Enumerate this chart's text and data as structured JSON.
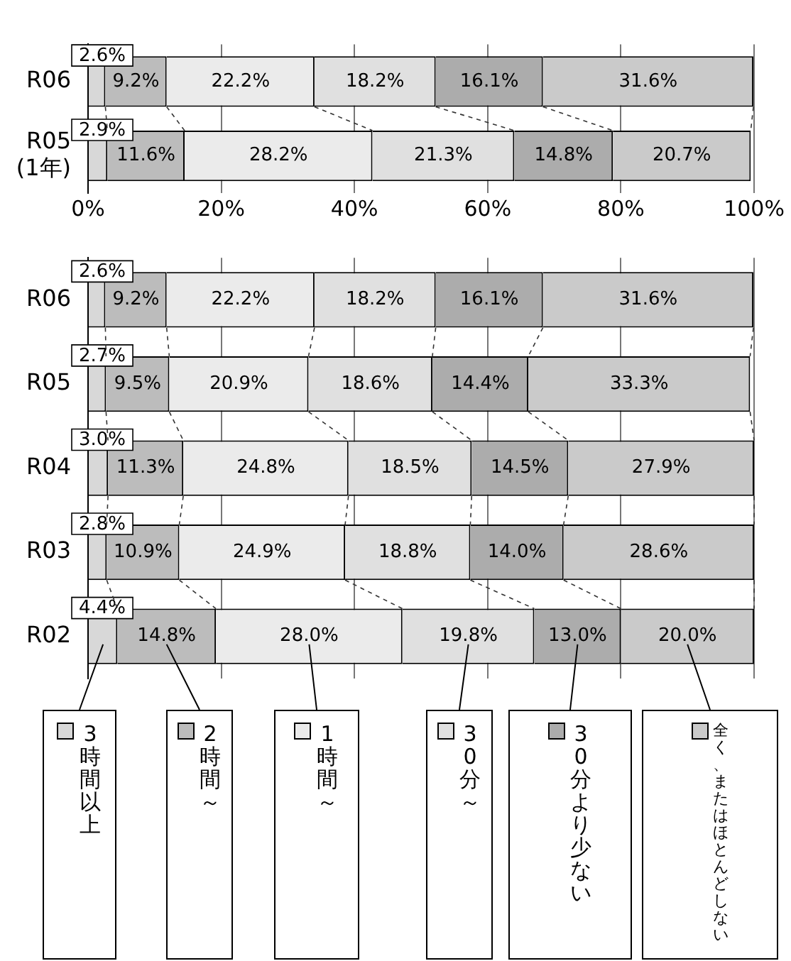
{
  "chart_data": [
    {
      "type": "bar",
      "orientation": "horizontal",
      "stacked": true,
      "categories": [
        "R06",
        "R05 (1年)"
      ],
      "xlim": [
        0,
        100
      ],
      "xticks": [
        {
          "value": 0,
          "label": "0%"
        },
        {
          "value": 20,
          "label": "20%"
        },
        {
          "value": 40,
          "label": "40%"
        },
        {
          "value": 60,
          "label": "60%"
        },
        {
          "value": 80,
          "label": "80%"
        },
        {
          "value": 100,
          "label": "100%"
        }
      ],
      "grid": "x",
      "series": [
        {
          "color": "#d8d8d8",
          "values": [
            2.6,
            2.9
          ],
          "value_labels": [
            "2.6%",
            "2.9%"
          ]
        },
        {
          "color": "#bcbcbc",
          "values": [
            9.2,
            11.6
          ],
          "value_labels": [
            "9.2%",
            "11.6%"
          ]
        },
        {
          "color": "#ebebeb",
          "values": [
            22.2,
            28.2
          ],
          "value_labels": [
            "22.2%",
            "28.2%"
          ]
        },
        {
          "color": "#e0e0e0",
          "values": [
            18.2,
            21.3
          ],
          "value_labels": [
            "18.2%",
            "21.3%"
          ]
        },
        {
          "color": "#acacac",
          "values": [
            16.1,
            14.8
          ],
          "value_labels": [
            "16.1%",
            "14.8%"
          ]
        },
        {
          "color": "#cacaca",
          "values": [
            31.6,
            20.7
          ],
          "value_labels": [
            "31.6%",
            "20.7%"
          ]
        }
      ]
    },
    {
      "type": "bar",
      "orientation": "horizontal",
      "stacked": true,
      "categories": [
        "R06",
        "R05",
        "R04",
        "R03",
        "R02"
      ],
      "xlim": [
        0,
        100
      ],
      "xticks": [
        0,
        20,
        40,
        60,
        80,
        100
      ],
      "tick_labels": "y",
      "grid": "x",
      "legend": "bottom",
      "series": [
        {
          "name": "3時間以上",
          "color": "#d8d8d8",
          "values": [
            2.6,
            2.7,
            3.0,
            2.8,
            4.4
          ],
          "value_labels": [
            "2.6%",
            "2.7%",
            "3.0%",
            "2.8%",
            "4.4%"
          ]
        },
        {
          "name": "2時間～",
          "color": "#bcbcbc",
          "values": [
            9.2,
            9.5,
            11.3,
            10.9,
            14.8
          ],
          "value_labels": [
            "9.2%",
            "9.5%",
            "11.3%",
            "10.9%",
            "14.8%"
          ]
        },
        {
          "name": "1時間～",
          "color": "#ebebeb",
          "values": [
            22.2,
            20.9,
            24.8,
            24.9,
            28.0
          ],
          "value_labels": [
            "22.2%",
            "20.9%",
            "24.8%",
            "24.9%",
            "28.0%"
          ]
        },
        {
          "name": "30分～",
          "color": "#e0e0e0",
          "values": [
            18.2,
            18.6,
            18.5,
            18.8,
            19.8
          ],
          "value_labels": [
            "18.2%",
            "18.6%",
            "18.5%",
            "18.8%",
            "19.8%"
          ]
        },
        {
          "name": "30分より少ない",
          "color": "#acacac",
          "values": [
            16.1,
            14.4,
            14.5,
            14.0,
            13.0
          ],
          "value_labels": [
            "16.1%",
            "14.4%",
            "14.5%",
            "14.0%",
            "13.0%"
          ]
        },
        {
          "name": "全く、またはほとんどしない",
          "color": "#cacaca",
          "values": [
            31.6,
            33.3,
            27.9,
            28.6,
            20.0
          ],
          "value_labels": [
            "31.6%",
            "33.3%",
            "27.9%",
            "28.6%",
            "20.0%"
          ]
        }
      ]
    }
  ]
}
